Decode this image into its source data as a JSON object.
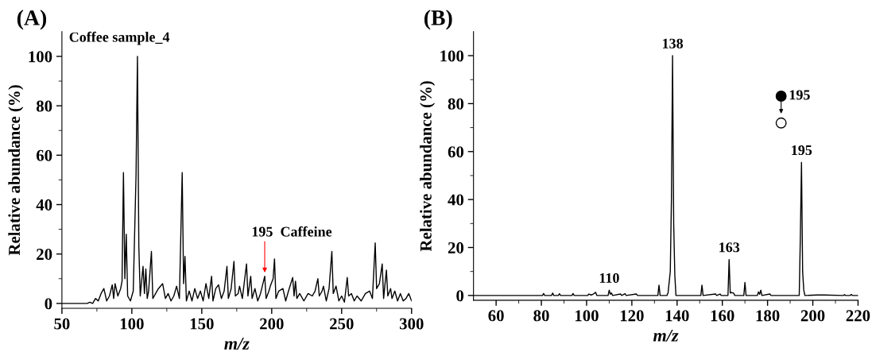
{
  "chart_data": [
    {
      "type": "line",
      "title": "(A)",
      "xlabel": "m/z",
      "ylabel": "Relative abundance (%)",
      "x": [
        50,
        68,
        70,
        72,
        74,
        76,
        78,
        80,
        82,
        84,
        86,
        87,
        88,
        90,
        92,
        93,
        94,
        95,
        96,
        97,
        99,
        101,
        103,
        104,
        105,
        106,
        108,
        109,
        110,
        111,
        112,
        114,
        115,
        117,
        119,
        122,
        124,
        126,
        128,
        130,
        132,
        134,
        136,
        137,
        138,
        139,
        141,
        143,
        145,
        147,
        149,
        151,
        153,
        155,
        157,
        158,
        160,
        162,
        164,
        166,
        168,
        169,
        171,
        173,
        174,
        176,
        177,
        179,
        182,
        183,
        185,
        186,
        188,
        190,
        192,
        195,
        196,
        198,
        199,
        201,
        202,
        203,
        205,
        208,
        210,
        212,
        215,
        216,
        217,
        218,
        220,
        223,
        226,
        229,
        231,
        233,
        234,
        236,
        237,
        239,
        241,
        243,
        244,
        246,
        248,
        250,
        252,
        254,
        255,
        257,
        259,
        261,
        264,
        267,
        270,
        272,
        274,
        275,
        277,
        279,
        280,
        282,
        283,
        285,
        286,
        288,
        290,
        292,
        294,
        296,
        298,
        300
      ],
      "series": [
        {
          "color": "#000000",
          "values": [
            0,
            0,
            0.5,
            0,
            2,
            1,
            4,
            6,
            1,
            3,
            7.5,
            2,
            8,
            3,
            6,
            9,
            53,
            10,
            28,
            3,
            1,
            5,
            52,
            100,
            23,
            3,
            15,
            4,
            14,
            2,
            5,
            21,
            2,
            4,
            6,
            8,
            2,
            4,
            1,
            3,
            7,
            2,
            53,
            8,
            19,
            1,
            5,
            1,
            6,
            2,
            5,
            1,
            8,
            2,
            11,
            1,
            6,
            7.5,
            2,
            5,
            15,
            2,
            6,
            17,
            3,
            4,
            7,
            2,
            16,
            3,
            11,
            2,
            6,
            1,
            4,
            11,
            2,
            5,
            7,
            10,
            18,
            2,
            5,
            6,
            1,
            5,
            10.5,
            3,
            9,
            2,
            4,
            1,
            4,
            3,
            5,
            10,
            3,
            5,
            7,
            1,
            6,
            21,
            4,
            7,
            1,
            3,
            0.5,
            10.5,
            3,
            4,
            1,
            3,
            1,
            4,
            5,
            2,
            24.5,
            6,
            8,
            16,
            2,
            13.5,
            3,
            6,
            2,
            5,
            1,
            4,
            1,
            2,
            4,
            1
          ]
        }
      ],
      "xlim": [
        50,
        300
      ],
      "xticks": [
        50,
        100,
        150,
        200,
        250,
        300
      ],
      "ylim": [
        -2,
        110
      ],
      "yticks": [
        0,
        20,
        40,
        60,
        80,
        100
      ],
      "annotations": [
        "Coffee sample_4",
        {
          "text": "195  Caffeine",
          "x": 195,
          "y": 11
        }
      ]
    },
    {
      "type": "line",
      "title": "(B)",
      "xlabel": "m/z",
      "ylabel": "Relative abundance (%)",
      "x": [
        50,
        80.5,
        81,
        81.5,
        84.5,
        85,
        85.5,
        87.5,
        88,
        88.5,
        93.5,
        94,
        94.5,
        100.5,
        101,
        102,
        103,
        104,
        104.5,
        109.5,
        110,
        110.5,
        111,
        111.5,
        115,
        115.5,
        117,
        117.5,
        122,
        122.5,
        131.5,
        132,
        132.5,
        135.5,
        136,
        137,
        137.5,
        138,
        138.5,
        139,
        139.5,
        150.5,
        151,
        151.5,
        157,
        157.5,
        159,
        159.5,
        162.5,
        163,
        163.5,
        164,
        165,
        165.5,
        169.5,
        170,
        170.5,
        175.5,
        176,
        176.5,
        177,
        177.5,
        181,
        181.5,
        194,
        194.5,
        195,
        195.5,
        196,
        196.5,
        202,
        205,
        213.5,
        214,
        214.5,
        216.5,
        217,
        217.5,
        220
      ],
      "series": [
        {
          "color": "#000000",
          "values": [
            0,
            0,
            0.8,
            0,
            0,
            1,
            0,
            0,
            0.7,
            0,
            0,
            0.8,
            0,
            0,
            0.6,
            0.2,
            0.6,
            1.3,
            0,
            0,
            2.2,
            0.5,
            1,
            0,
            0.6,
            0,
            0.7,
            0,
            0.6,
            0,
            0,
            4.3,
            0,
            0,
            1,
            10,
            40,
            100,
            30,
            8.5,
            0,
            0,
            4.3,
            0,
            0.6,
            0,
            0.6,
            0,
            0,
            15,
            1,
            1.2,
            1,
            0,
            0,
            5.4,
            0,
            0,
            1.5,
            0.5,
            2.2,
            0,
            0.6,
            0,
            0,
            25,
            55.5,
            10,
            2.3,
            0,
            0.2,
            0.2,
            0,
            0.3,
            0,
            0,
            0.4,
            0,
            0
          ]
        }
      ],
      "xlim": [
        50,
        220
      ],
      "xticks": [
        60,
        80,
        100,
        120,
        140,
        160,
        180,
        200,
        220
      ],
      "ylim": [
        -2,
        110
      ],
      "yticks": [
        0,
        20,
        40,
        60,
        80,
        100
      ],
      "annotations": [
        {
          "text": "138",
          "x": 138,
          "y": 100
        },
        {
          "text": "110",
          "x": 110,
          "y": 2.2
        },
        {
          "text": "163",
          "x": 163,
          "y": 15
        },
        {
          "text": "195",
          "x": 195,
          "y": 55.5
        },
        "195"
      ]
    }
  ]
}
